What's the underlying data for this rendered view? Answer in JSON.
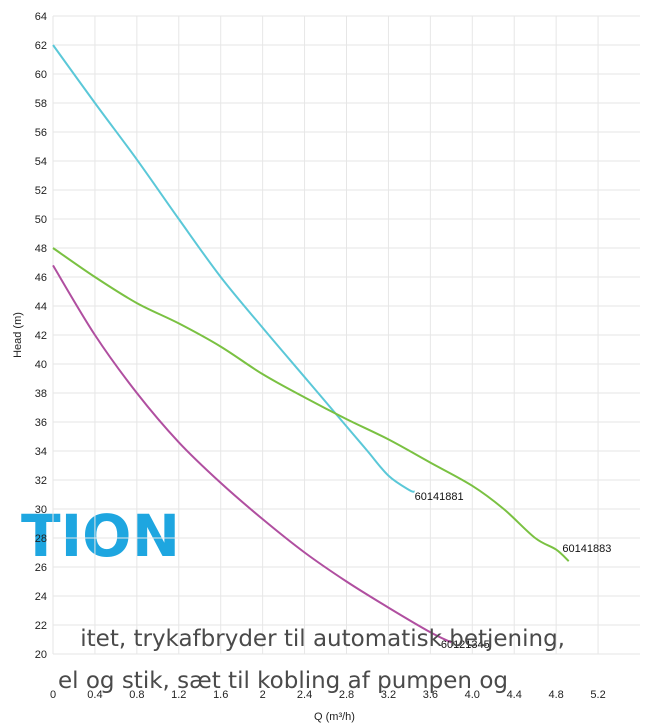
{
  "background_text": {
    "heading": "TION",
    "line1": "itet, trykafbryder til automatisk betjening,",
    "line2": "el og stik, sæt til kobling af pumpen og"
  },
  "chart_data": {
    "type": "line",
    "title": "",
    "xlabel": "Q (m³/h)",
    "ylabel": "Head (m)",
    "xlim": [
      0,
      5.6
    ],
    "ylim": [
      20,
      64
    ],
    "x_ticks": [
      "0",
      "0.4",
      "0.8",
      "1.2",
      "1.6",
      "2",
      "2.4",
      "2.8",
      "3.2",
      "3.6",
      "4.0",
      "4.4",
      "4.8",
      "5.2"
    ],
    "y_ticks": [
      "20",
      "22",
      "24",
      "26",
      "28",
      "30",
      "32",
      "34",
      "36",
      "38",
      "40",
      "42",
      "44",
      "46",
      "48",
      "50",
      "52",
      "54",
      "56",
      "58",
      "60",
      "62",
      "64"
    ],
    "grid": true,
    "series": [
      {
        "name": "60141881",
        "color": "#5bc8d8",
        "points": [
          [
            0,
            62
          ],
          [
            0.4,
            58
          ],
          [
            0.8,
            54.1
          ],
          [
            1.2,
            50
          ],
          [
            1.6,
            46
          ],
          [
            2.0,
            42.5
          ],
          [
            2.4,
            39.1
          ],
          [
            2.8,
            35.7
          ],
          [
            3.0,
            34.0
          ],
          [
            3.2,
            32.3
          ],
          [
            3.4,
            31.3
          ],
          [
            3.45,
            31.2
          ]
        ]
      },
      {
        "name": "60141883",
        "color": "#7ac142",
        "points": [
          [
            0,
            48
          ],
          [
            0.4,
            46
          ],
          [
            0.8,
            44.2
          ],
          [
            1.2,
            42.8
          ],
          [
            1.6,
            41.2
          ],
          [
            2.0,
            39.3
          ],
          [
            2.4,
            37.7
          ],
          [
            2.8,
            36.2
          ],
          [
            3.2,
            34.8
          ],
          [
            3.6,
            33.2
          ],
          [
            4.0,
            31.6
          ],
          [
            4.3,
            30.0
          ],
          [
            4.6,
            28.0
          ],
          [
            4.8,
            27.2
          ],
          [
            4.92,
            26.4
          ]
        ]
      },
      {
        "name": "60121345",
        "color": "#b04fa0",
        "points": [
          [
            0,
            46.8
          ],
          [
            0.4,
            42
          ],
          [
            0.8,
            38
          ],
          [
            1.2,
            34.6
          ],
          [
            1.6,
            31.8
          ],
          [
            2.0,
            29.3
          ],
          [
            2.4,
            27
          ],
          [
            2.8,
            25
          ],
          [
            3.2,
            23.2
          ],
          [
            3.6,
            21.5
          ],
          [
            3.8,
            20.8
          ]
        ]
      }
    ],
    "curve_labels": [
      {
        "text": "60141881",
        "x": 3.45,
        "y": 30.9
      },
      {
        "text": "60141883",
        "x": 4.86,
        "y": 27.3
      },
      {
        "text": "60121345",
        "x": 3.7,
        "y": 20.7
      }
    ]
  }
}
